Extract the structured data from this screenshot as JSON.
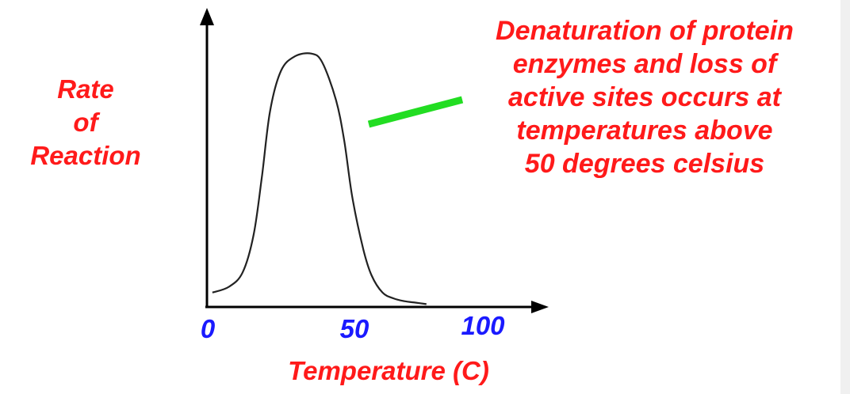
{
  "chart_data": {
    "type": "line",
    "xlabel": "Temperature (C)",
    "ylabel_lines": [
      "Rate",
      "of",
      "Reaction"
    ],
    "x_ticks": [
      "0",
      "50",
      "100"
    ],
    "xlim": [
      0,
      100
    ],
    "ylim": [
      0,
      100
    ],
    "grid": false,
    "series": [
      {
        "x": [
          2,
          8,
          13,
          17,
          20,
          23,
          27,
          32,
          38,
          42,
          47,
          50,
          53,
          57,
          60,
          64,
          68,
          72,
          76,
          80
        ],
        "y": [
          5,
          7,
          12,
          25,
          45,
          68,
          82,
          87,
          88,
          85,
          72,
          58,
          38,
          20,
          11,
          5,
          3,
          2,
          1.5,
          1
        ]
      }
    ],
    "annotation": {
      "lines": [
        "Denaturation of protein",
        "enzymes and loss of",
        "active sites occurs at",
        "temperatures above",
        "50 degrees celsius"
      ],
      "pointer_color": "#22dd22",
      "text_color": "#ff1a1a"
    },
    "colors": {
      "label_red": "#ff1a1a",
      "tick_blue": "#1a1aff",
      "axis": "#000000",
      "curve": "#222222"
    }
  }
}
